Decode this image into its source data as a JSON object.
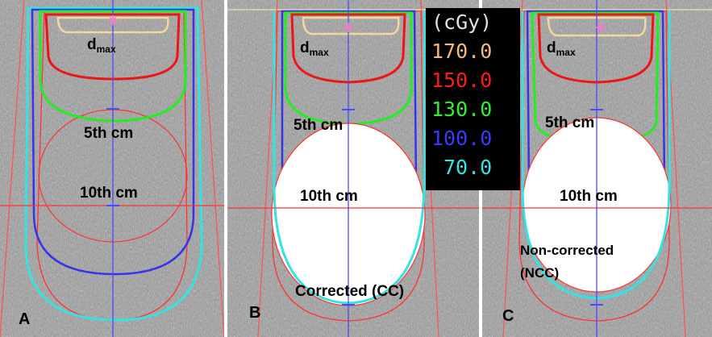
{
  "panels": [
    {
      "letter": "A",
      "labels": {
        "dmax_main": "d",
        "dmax_sub": "max",
        "depth_5": "5th cm",
        "depth_10": "10th cm",
        "note_line1": "",
        "note_line2": ""
      }
    },
    {
      "letter": "B",
      "labels": {
        "dmax_main": "d",
        "dmax_sub": "max",
        "depth_5": "5th cm",
        "depth_10": "10th cm",
        "note_line1": "Corrected (CC)",
        "note_line2": ""
      }
    },
    {
      "letter": "C",
      "labels": {
        "dmax_main": "d",
        "dmax_sub": "max",
        "depth_5": "5th cm",
        "depth_10": "10th cm",
        "note_line1": "Non-corrected",
        "note_line2": "(NCC)"
      }
    }
  ],
  "legend": {
    "unit": "(cGy)",
    "entries": [
      {
        "label": "170.0",
        "color": "#f2b880"
      },
      {
        "label": "150.0",
        "color": "#ff1a1a"
      },
      {
        "label": "130.0",
        "color": "#33ee33"
      },
      {
        "label": "100.0",
        "color": "#3a3aff"
      },
      {
        "label": "70.0",
        "color": "#33e6e6"
      }
    ]
  },
  "colors": {
    "isodose_170": "#f4d79a",
    "isodose_150": "#ee1515",
    "isodose_130": "#22ee22",
    "isodose_100": "#3434e8",
    "isodose_70": "#35e3e3",
    "crosshair_vertical": "#4a4aff",
    "crosshair_horizontal": "#ff3333",
    "phantom_fill": "#ffffff",
    "ct_background": "#9c9c9c"
  }
}
